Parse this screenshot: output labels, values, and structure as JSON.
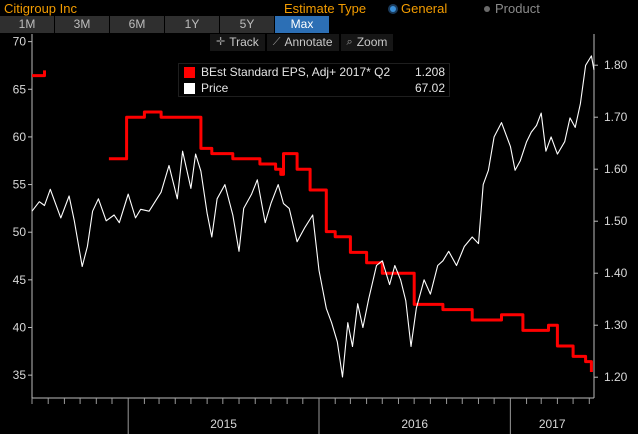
{
  "header": {
    "title": "Citigroup Inc",
    "estimate_type_label": "Estimate Type",
    "options": [
      {
        "label": "General",
        "selected": true
      },
      {
        "label": "Product",
        "selected": false
      }
    ]
  },
  "ranges": [
    {
      "label": "1M",
      "active": false
    },
    {
      "label": "3M",
      "active": false
    },
    {
      "label": "6M",
      "active": false
    },
    {
      "label": "1Y",
      "active": false
    },
    {
      "label": "5Y",
      "active": false
    },
    {
      "label": "Max",
      "active": true
    }
  ],
  "tools": [
    {
      "icon": "crosshair-icon",
      "glyph": "✛",
      "label": "Track"
    },
    {
      "icon": "pencil-icon",
      "glyph": "⟋",
      "label": "Annotate"
    },
    {
      "icon": "magnifier-icon",
      "glyph": "⌕",
      "label": "Zoom"
    }
  ],
  "legend": [
    {
      "label": "BEst Standard EPS, Adj+ 2017* Q2",
      "value": "1.208",
      "color": "#ff0000"
    },
    {
      "label": "Price",
      "value": "67.02",
      "color": "#ffffff"
    }
  ],
  "chart_data": {
    "type": "line",
    "x_range": [
      "2014-07-01",
      "2017-06-10"
    ],
    "x_tick_labels": [
      "2015",
      "2016",
      "2017"
    ],
    "left_axis": {
      "ticks": [
        35,
        40,
        45,
        50,
        55,
        60,
        65,
        70
      ],
      "range": [
        32.6,
        70.8
      ]
    },
    "right_axis": {
      "ticks": [
        "1.20",
        "1.30",
        "1.40",
        "1.50",
        "1.60",
        "1.70",
        "1.80"
      ],
      "range": [
        1.16,
        1.86
      ]
    },
    "series": [
      {
        "name": "BEst Standard EPS, Adj+ 2017* Q2",
        "axis": "right",
        "color": "#ff0000",
        "step": true,
        "points": [
          [
            "2014-07-01",
            1.78
          ],
          [
            "2014-07-25",
            1.79
          ],
          [
            "2014-08-20",
            null
          ],
          [
            "2014-11-25",
            1.62
          ],
          [
            "2014-12-28",
            1.62
          ],
          [
            "2014-12-29",
            1.7
          ],
          [
            "2015-02-01",
            1.71
          ],
          [
            "2015-03-05",
            1.7
          ],
          [
            "2015-04-01",
            1.7
          ],
          [
            "2015-05-15",
            1.7
          ],
          [
            "2015-05-20",
            1.64
          ],
          [
            "2015-06-10",
            1.63
          ],
          [
            "2015-07-05",
            1.63
          ],
          [
            "2015-07-20",
            1.62
          ],
          [
            "2015-09-01",
            1.62
          ],
          [
            "2015-09-10",
            1.61
          ],
          [
            "2015-10-10",
            1.6
          ],
          [
            "2015-10-20",
            1.59
          ],
          [
            "2015-10-25",
            1.63
          ],
          [
            "2015-11-20",
            1.6
          ],
          [
            "2015-12-15",
            1.56
          ],
          [
            "2016-01-15",
            1.48
          ],
          [
            "2016-02-01",
            1.47
          ],
          [
            "2016-03-01",
            1.44
          ],
          [
            "2016-04-01",
            1.42
          ],
          [
            "2016-05-01",
            1.4
          ],
          [
            "2016-06-15",
            1.4
          ],
          [
            "2016-07-01",
            1.34
          ],
          [
            "2016-08-05",
            1.34
          ],
          [
            "2016-08-25",
            1.33
          ],
          [
            "2016-10-05",
            1.33
          ],
          [
            "2016-10-20",
            1.31
          ],
          [
            "2016-12-01",
            1.31
          ],
          [
            "2016-12-15",
            1.32
          ],
          [
            "2017-01-10",
            1.32
          ],
          [
            "2017-01-25",
            1.29
          ],
          [
            "2017-03-10",
            1.29
          ],
          [
            "2017-03-15",
            1.3
          ],
          [
            "2017-04-01",
            1.26
          ],
          [
            "2017-05-01",
            1.24
          ],
          [
            "2017-05-25",
            1.23
          ],
          [
            "2017-06-05",
            1.21
          ]
        ]
      },
      {
        "name": "Price",
        "axis": "left",
        "color": "#ffffff",
        "step": false,
        "points": [
          [
            "2014-07-01",
            52.2
          ],
          [
            "2014-07-15",
            53.2
          ],
          [
            "2014-07-25",
            52.8
          ],
          [
            "2014-08-05",
            54.5
          ],
          [
            "2014-08-15",
            53.0
          ],
          [
            "2014-08-25",
            51.5
          ],
          [
            "2014-09-10",
            53.8
          ],
          [
            "2014-09-20",
            51.2
          ],
          [
            "2014-10-05",
            46.4
          ],
          [
            "2014-10-15",
            48.5
          ],
          [
            "2014-10-25",
            52.2
          ],
          [
            "2014-11-05",
            53.5
          ],
          [
            "2014-11-20",
            51.2
          ],
          [
            "2014-12-05",
            51.8
          ],
          [
            "2014-12-15",
            51.0
          ],
          [
            "2015-01-01",
            54.0
          ],
          [
            "2015-01-15",
            51.5
          ],
          [
            "2015-01-25",
            52.4
          ],
          [
            "2015-02-10",
            52.2
          ],
          [
            "2015-02-25",
            53.5
          ],
          [
            "2015-03-05",
            54.2
          ],
          [
            "2015-03-20",
            57.0
          ],
          [
            "2015-04-05",
            53.5
          ],
          [
            "2015-04-15",
            58.5
          ],
          [
            "2015-05-01",
            54.6
          ],
          [
            "2015-05-10",
            58.2
          ],
          [
            "2015-05-20",
            56.4
          ],
          [
            "2015-06-01",
            52.0
          ],
          [
            "2015-06-10",
            49.5
          ],
          [
            "2015-06-20",
            53.5
          ],
          [
            "2015-07-05",
            55.0
          ],
          [
            "2015-07-20",
            51.8
          ],
          [
            "2015-08-01",
            48.0
          ],
          [
            "2015-08-10",
            52.5
          ],
          [
            "2015-08-25",
            54.0
          ],
          [
            "2015-09-05",
            55.5
          ],
          [
            "2015-09-20",
            51.0
          ],
          [
            "2015-10-01",
            53.0
          ],
          [
            "2015-10-15",
            55.0
          ],
          [
            "2015-10-25",
            53.0
          ],
          [
            "2015-11-05",
            52.5
          ],
          [
            "2015-11-20",
            49.0
          ],
          [
            "2015-12-05",
            50.5
          ],
          [
            "2015-12-20",
            51.8
          ],
          [
            "2016-01-01",
            46.0
          ],
          [
            "2016-01-15",
            42.0
          ],
          [
            "2016-01-25",
            40.5
          ],
          [
            "2016-02-05",
            38.5
          ],
          [
            "2016-02-15",
            34.8
          ],
          [
            "2016-02-25",
            40.5
          ],
          [
            "2016-03-05",
            38.0
          ],
          [
            "2016-03-15",
            42.5
          ],
          [
            "2016-03-25",
            40.0
          ],
          [
            "2016-04-05",
            43.0
          ],
          [
            "2016-04-20",
            46.5
          ],
          [
            "2016-05-01",
            47.0
          ],
          [
            "2016-05-15",
            44.5
          ],
          [
            "2016-05-25",
            46.5
          ],
          [
            "2016-06-05",
            45.0
          ],
          [
            "2016-06-15",
            42.8
          ],
          [
            "2016-06-25",
            38.0
          ],
          [
            "2016-07-05",
            42.0
          ],
          [
            "2016-07-20",
            45.0
          ],
          [
            "2016-08-01",
            43.5
          ],
          [
            "2016-08-15",
            46.5
          ],
          [
            "2016-08-25",
            47.0
          ],
          [
            "2016-09-05",
            48.0
          ],
          [
            "2016-09-20",
            46.5
          ],
          [
            "2016-10-05",
            48.5
          ],
          [
            "2016-10-20",
            49.5
          ],
          [
            "2016-11-01",
            48.8
          ],
          [
            "2016-11-10",
            55.0
          ],
          [
            "2016-11-20",
            56.5
          ],
          [
            "2016-12-01",
            60.0
          ],
          [
            "2016-12-15",
            61.5
          ],
          [
            "2017-01-01",
            59.0
          ],
          [
            "2017-01-10",
            56.5
          ],
          [
            "2017-01-20",
            57.5
          ],
          [
            "2017-02-01",
            59.5
          ],
          [
            "2017-02-10",
            60.5
          ],
          [
            "2017-02-20",
            61.2
          ],
          [
            "2017-03-01",
            62.5
          ],
          [
            "2017-03-10",
            58.5
          ],
          [
            "2017-03-20",
            60.0
          ],
          [
            "2017-04-01",
            58.2
          ],
          [
            "2017-04-15",
            59.5
          ],
          [
            "2017-04-25",
            62.0
          ],
          [
            "2017-05-05",
            61.0
          ],
          [
            "2017-05-15",
            63.5
          ],
          [
            "2017-05-25",
            67.5
          ],
          [
            "2017-06-05",
            68.5
          ],
          [
            "2017-06-10",
            67.02
          ]
        ]
      }
    ]
  }
}
